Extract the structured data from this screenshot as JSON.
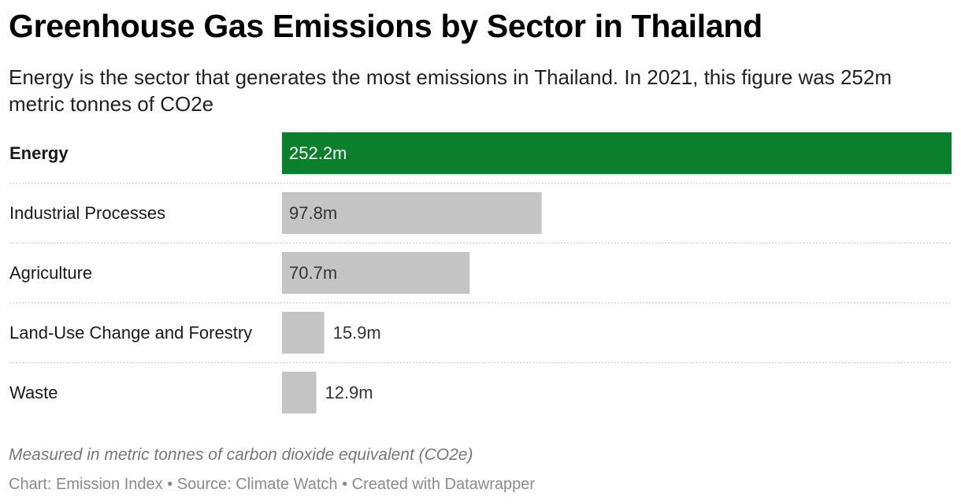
{
  "title": "Greenhouse Gas Emissions by Sector in Thailand",
  "subtitle": "Energy is the sector that generates the most emissions in Thailand. In 2021, this figure was 252m metric tonnes of CO2e",
  "notes": "Measured in metric tonnes of carbon dioxide equivalent (CO2e)",
  "footer": {
    "chart_credit": "Chart: Emission Index",
    "separator": " • ",
    "source": "Source: Climate Watch",
    "created_with": "Created with Datawrapper"
  },
  "colors": {
    "highlight": "#0c7f2d",
    "default_bar": "#c4c4c4",
    "label_on_highlight": "#ffffff",
    "label_default": "#333333"
  },
  "chart_data": {
    "type": "bar",
    "orientation": "horizontal",
    "categories": [
      "Energy",
      "Industrial Processes",
      "Agriculture",
      "Land-Use Change and Forestry",
      "Waste"
    ],
    "values": [
      252.2,
      97.8,
      70.7,
      15.9,
      12.9
    ],
    "value_labels": [
      "252.2m",
      "97.8m",
      "70.7m",
      "15.9m",
      "12.9m"
    ],
    "highlighted_category": "Energy",
    "xlim": [
      0,
      252.2
    ],
    "grid": false,
    "legend": "none"
  }
}
